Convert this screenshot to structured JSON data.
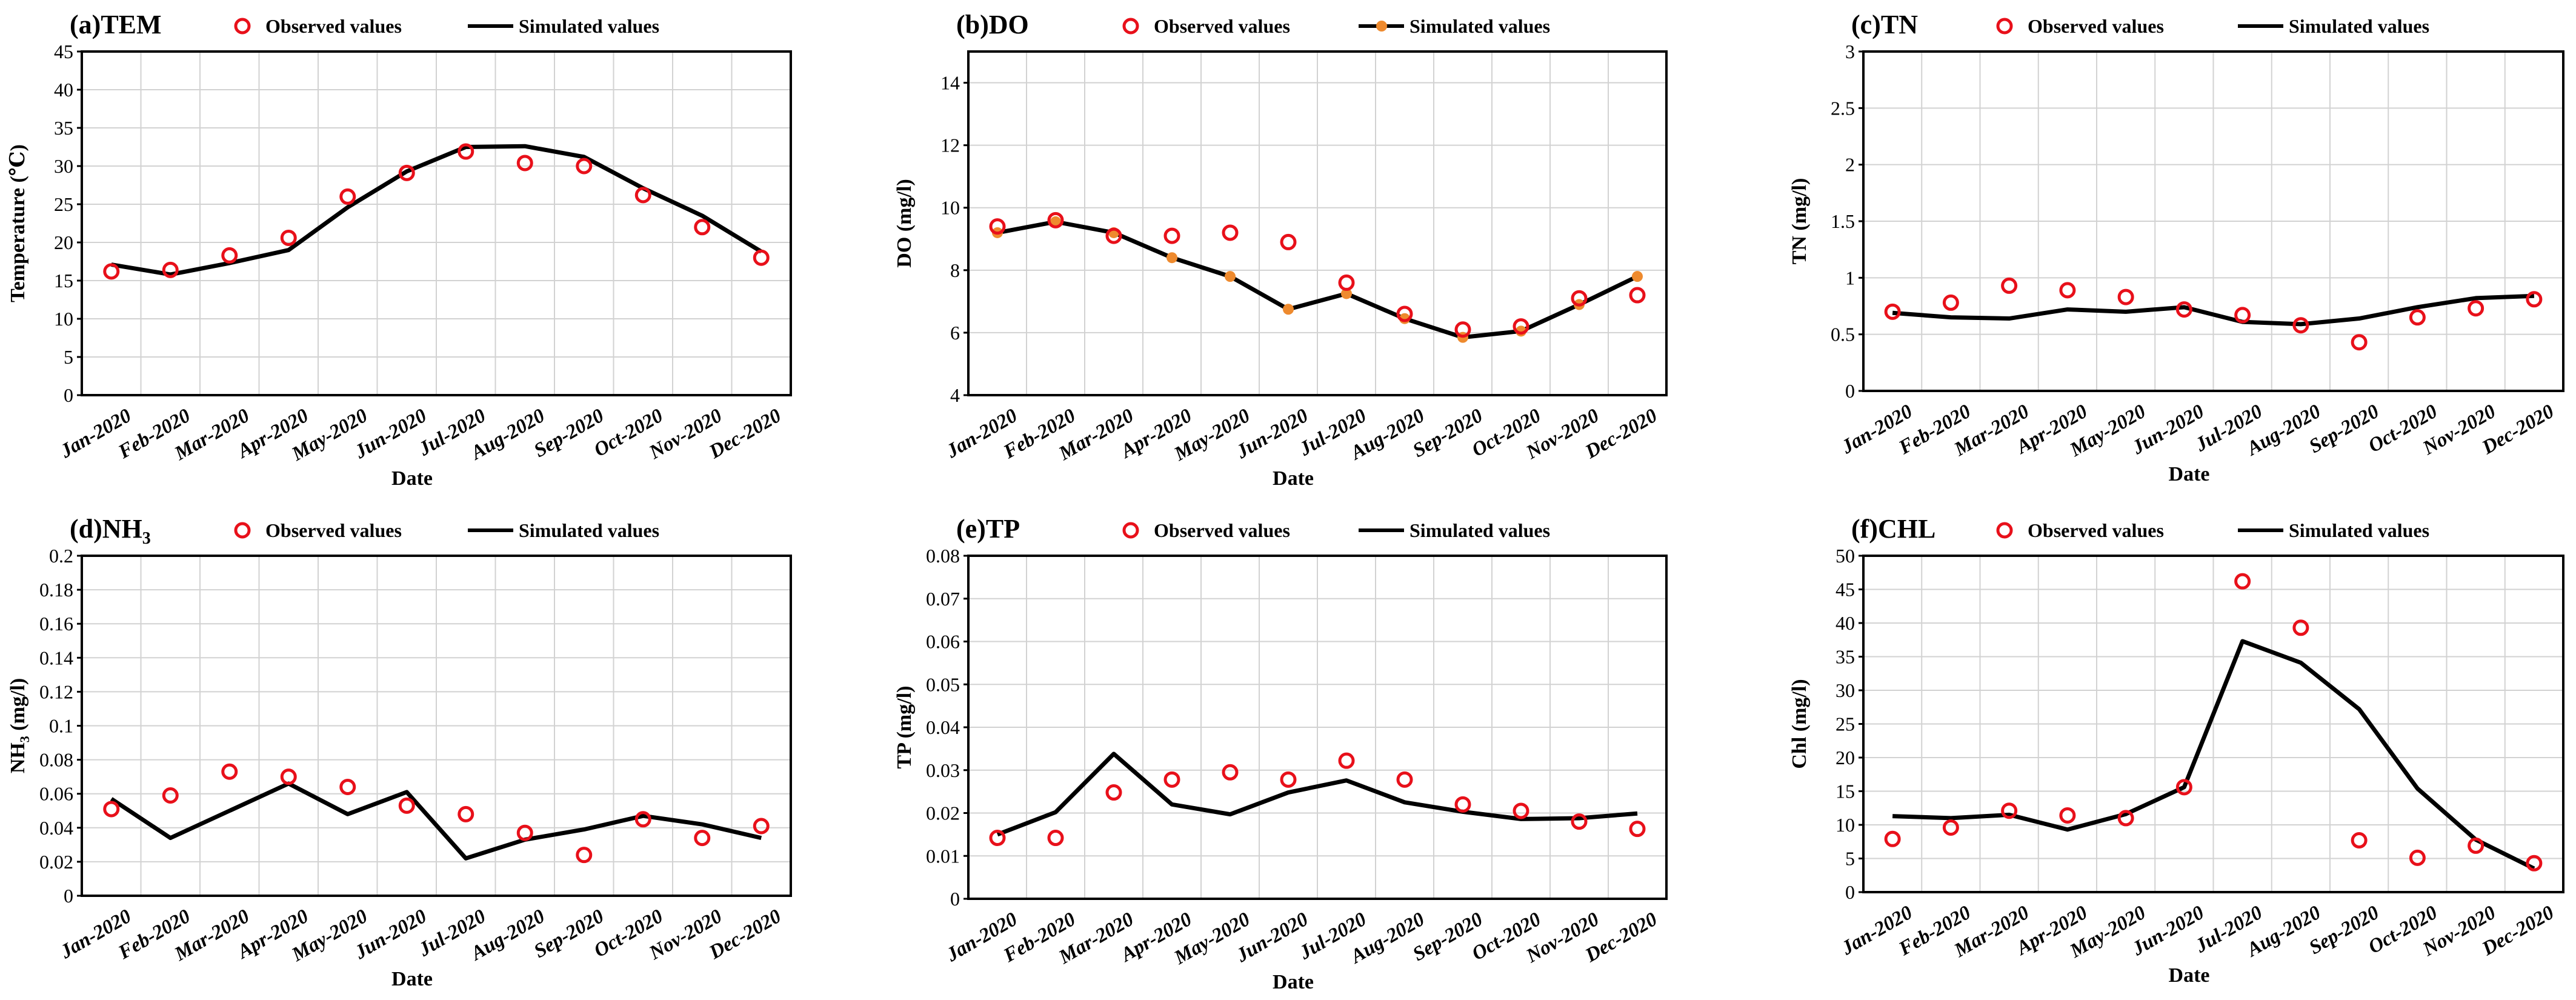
{
  "figure": {
    "legend": {
      "observed": "Observed values",
      "simulated": "Simulated values"
    },
    "xlabel": "Date"
  },
  "chart_data": [
    {
      "type": "line",
      "title_prefix": "(a)",
      "title_main": "TEM",
      "title_sub": "",
      "ylabel": "Temperature (℃)",
      "ylabel_sub": "",
      "ylabel_suffix": "",
      "xlabel": "Date",
      "ylim": [
        0,
        45
      ],
      "yticks": [
        0,
        5,
        10,
        15,
        20,
        25,
        30,
        35,
        40,
        45
      ],
      "ytick_labels": [
        "0",
        "5",
        "10",
        "15",
        "20",
        "25",
        "30",
        "35",
        "40",
        "45"
      ],
      "grid": true,
      "legend": "top",
      "sim_markers": false,
      "categories": [
        "Jan-2020",
        "Feb-2020",
        "Mar-2020",
        "Apr-2020",
        "May-2020",
        "Jun-2020",
        "Jul-2020",
        "Aug-2020",
        "Sep-2020",
        "Oct-2020",
        "Nov-2020",
        "Dec-2020"
      ],
      "series": [
        {
          "name": "Observed values",
          "kind": "scatter",
          "color": "#e8101a",
          "values": [
            16.2,
            16.4,
            18.3,
            20.6,
            26.0,
            29.1,
            31.9,
            30.4,
            30.0,
            26.2,
            22.0,
            18.0
          ]
        },
        {
          "name": "Simulated values",
          "kind": "line",
          "color": "#000000",
          "values": [
            17.1,
            15.8,
            17.3,
            19.0,
            24.6,
            29.3,
            32.5,
            32.6,
            31.2,
            27.1,
            23.5,
            18.8
          ]
        }
      ]
    },
    {
      "type": "line",
      "title_prefix": "(b)",
      "title_main": "DO",
      "title_sub": "",
      "ylabel": "DO (mg/l)",
      "ylabel_sub": "",
      "ylabel_suffix": "",
      "xlabel": "Date",
      "ylim": [
        4,
        15
      ],
      "yticks": [
        4,
        6,
        8,
        10,
        12,
        14
      ],
      "ytick_labels": [
        "4",
        "6",
        "8",
        "10",
        "12",
        "14"
      ],
      "grid": true,
      "legend": "top",
      "sim_markers": true,
      "sim_marker_color": "#ee8a2e",
      "categories": [
        "Jan-2020",
        "Feb-2020",
        "Mar-2020",
        "Apr-2020",
        "May-2020",
        "Jun-2020",
        "Jul-2020",
        "Aug-2020",
        "Sep-2020",
        "Oct-2020",
        "Nov-2020",
        "Dec-2020"
      ],
      "series": [
        {
          "name": "Observed values",
          "kind": "scatter",
          "color": "#e8101a",
          "values": [
            9.4,
            9.6,
            9.1,
            9.1,
            9.2,
            8.9,
            7.6,
            6.6,
            6.1,
            6.2,
            7.1,
            7.2
          ]
        },
        {
          "name": "Simulated values",
          "kind": "line",
          "color": "#000000",
          "values": [
            9.2,
            9.55,
            9.2,
            8.4,
            7.8,
            6.75,
            7.25,
            6.45,
            5.85,
            6.05,
            6.9,
            7.8
          ]
        }
      ]
    },
    {
      "type": "line",
      "title_prefix": "(c)",
      "title_main": "TN",
      "title_sub": "",
      "ylabel": "TN  (mg/l)",
      "ylabel_sub": "",
      "ylabel_suffix": "",
      "xlabel": "Date",
      "ylim": [
        0,
        3
      ],
      "yticks": [
        0,
        0.5,
        1,
        1.5,
        2,
        2.5,
        3
      ],
      "ytick_labels": [
        "0",
        "0.5",
        "1",
        "1.5",
        "2",
        "2.5",
        "3"
      ],
      "grid": true,
      "legend": "top",
      "sim_markers": false,
      "categories": [
        "Jan-2020",
        "Feb-2020",
        "Mar-2020",
        "Apr-2020",
        "May-2020",
        "Jun-2020",
        "Jul-2020",
        "Aug-2020",
        "Sep-2020",
        "Oct-2020",
        "Nov-2020",
        "Dec-2020"
      ],
      "series": [
        {
          "name": "Observed values",
          "kind": "scatter",
          "color": "#e8101a",
          "values": [
            0.7,
            0.78,
            0.93,
            0.89,
            0.83,
            0.72,
            0.67,
            0.58,
            0.43,
            0.65,
            0.73,
            0.81
          ]
        },
        {
          "name": "Simulated values",
          "kind": "line",
          "color": "#000000",
          "values": [
            0.69,
            0.65,
            0.64,
            0.72,
            0.7,
            0.74,
            0.61,
            0.59,
            0.64,
            0.74,
            0.82,
            0.84
          ]
        }
      ]
    },
    {
      "type": "line",
      "title_prefix": "(d)",
      "title_main": "NH",
      "title_sub": "3",
      "ylabel": "NH",
      "ylabel_sub": "3",
      "ylabel_suffix": " (mg/l)",
      "xlabel": "Date",
      "ylim": [
        0,
        0.2
      ],
      "yticks": [
        0,
        0.02,
        0.04,
        0.06,
        0.08,
        0.1,
        0.12,
        0.14,
        0.16,
        0.18,
        0.2
      ],
      "ytick_labels": [
        "0",
        "0.02",
        "0.04",
        "0.06",
        "0.08",
        "0.1",
        "0.12",
        "0.14",
        "0.16",
        "0.18",
        "0.2"
      ],
      "grid": true,
      "legend": "top",
      "sim_markers": false,
      "categories": [
        "Jan-2020",
        "Feb-2020",
        "Mar-2020",
        "Apr-2020",
        "May-2020",
        "Jun-2020",
        "Jul-2020",
        "Aug-2020",
        "Sep-2020",
        "Oct-2020",
        "Nov-2020",
        "Dec-2020"
      ],
      "series": [
        {
          "name": "Observed values",
          "kind": "scatter",
          "color": "#e8101a",
          "values": [
            0.051,
            0.059,
            0.073,
            0.07,
            0.064,
            0.053,
            0.048,
            0.037,
            0.024,
            0.045,
            0.034,
            0.041
          ]
        },
        {
          "name": "Simulated values",
          "kind": "line",
          "color": "#000000",
          "values": [
            0.057,
            0.034,
            0.05,
            0.066,
            0.048,
            0.061,
            0.022,
            0.033,
            0.039,
            0.047,
            0.042,
            0.034
          ]
        }
      ]
    },
    {
      "type": "line",
      "title_prefix": "(e)",
      "title_main": "TP",
      "title_sub": "",
      "ylabel": "TP  (mg/l)",
      "ylabel_sub": "",
      "ylabel_suffix": "",
      "xlabel": "Date",
      "ylim": [
        0,
        0.08
      ],
      "yticks": [
        0,
        0.01,
        0.02,
        0.03,
        0.04,
        0.05,
        0.06,
        0.07,
        0.08
      ],
      "ytick_labels": [
        "0",
        "0.01",
        "0.02",
        "0.03",
        "0.04",
        "0.05",
        "0.06",
        "0.07",
        "0.08"
      ],
      "grid": true,
      "legend": "top",
      "sim_markers": false,
      "categories": [
        "Jan-2020",
        "Feb-2020",
        "Mar-2020",
        "Apr-2020",
        "May-2020",
        "Jun-2020",
        "Jul-2020",
        "Aug-2020",
        "Sep-2020",
        "Oct-2020",
        "Nov-2020",
        "Dec-2020"
      ],
      "series": [
        {
          "name": "Observed values",
          "kind": "scatter",
          "color": "#e8101a",
          "values": [
            0.0142,
            0.0142,
            0.0248,
            0.0278,
            0.0295,
            0.0278,
            0.0322,
            0.0278,
            0.022,
            0.0205,
            0.018,
            0.0163
          ]
        },
        {
          "name": "Simulated values",
          "kind": "line",
          "color": "#000000",
          "values": [
            0.015,
            0.0202,
            0.0338,
            0.022,
            0.0197,
            0.0248,
            0.0276,
            0.0225,
            0.0203,
            0.0186,
            0.0188,
            0.0199
          ]
        }
      ]
    },
    {
      "type": "line",
      "title_prefix": "(f)",
      "title_main": "CHL",
      "title_sub": "",
      "ylabel": "Chl (mg/l)",
      "ylabel_sub": "",
      "ylabel_suffix": "",
      "xlabel": "Date",
      "ylim": [
        0,
        50
      ],
      "yticks": [
        0,
        5,
        10,
        15,
        20,
        25,
        30,
        35,
        40,
        45,
        50
      ],
      "ytick_labels": [
        "0",
        "5",
        "10",
        "15",
        "20",
        "25",
        "30",
        "35",
        "40",
        "45",
        "50"
      ],
      "grid": true,
      "legend": "top",
      "sim_markers": false,
      "categories": [
        "Jan-2020",
        "Feb-2020",
        "Mar-2020",
        "Apr-2020",
        "May-2020",
        "Jun-2020",
        "Jul-2020",
        "Aug-2020",
        "Sep-2020",
        "Oct-2020",
        "Nov-2020",
        "Dec-2020"
      ],
      "series": [
        {
          "name": "Observed values",
          "kind": "scatter",
          "color": "#e8101a",
          "values": [
            7.9,
            9.6,
            12.1,
            11.4,
            11.0,
            15.6,
            46.2,
            39.3,
            7.7,
            5.1,
            6.9,
            4.3
          ]
        },
        {
          "name": "Simulated values",
          "kind": "line",
          "color": "#000000",
          "values": [
            11.3,
            11.0,
            11.5,
            9.3,
            11.6,
            15.6,
            37.3,
            34.1,
            27.2,
            15.4,
            7.8,
            3.5
          ]
        }
      ]
    }
  ]
}
